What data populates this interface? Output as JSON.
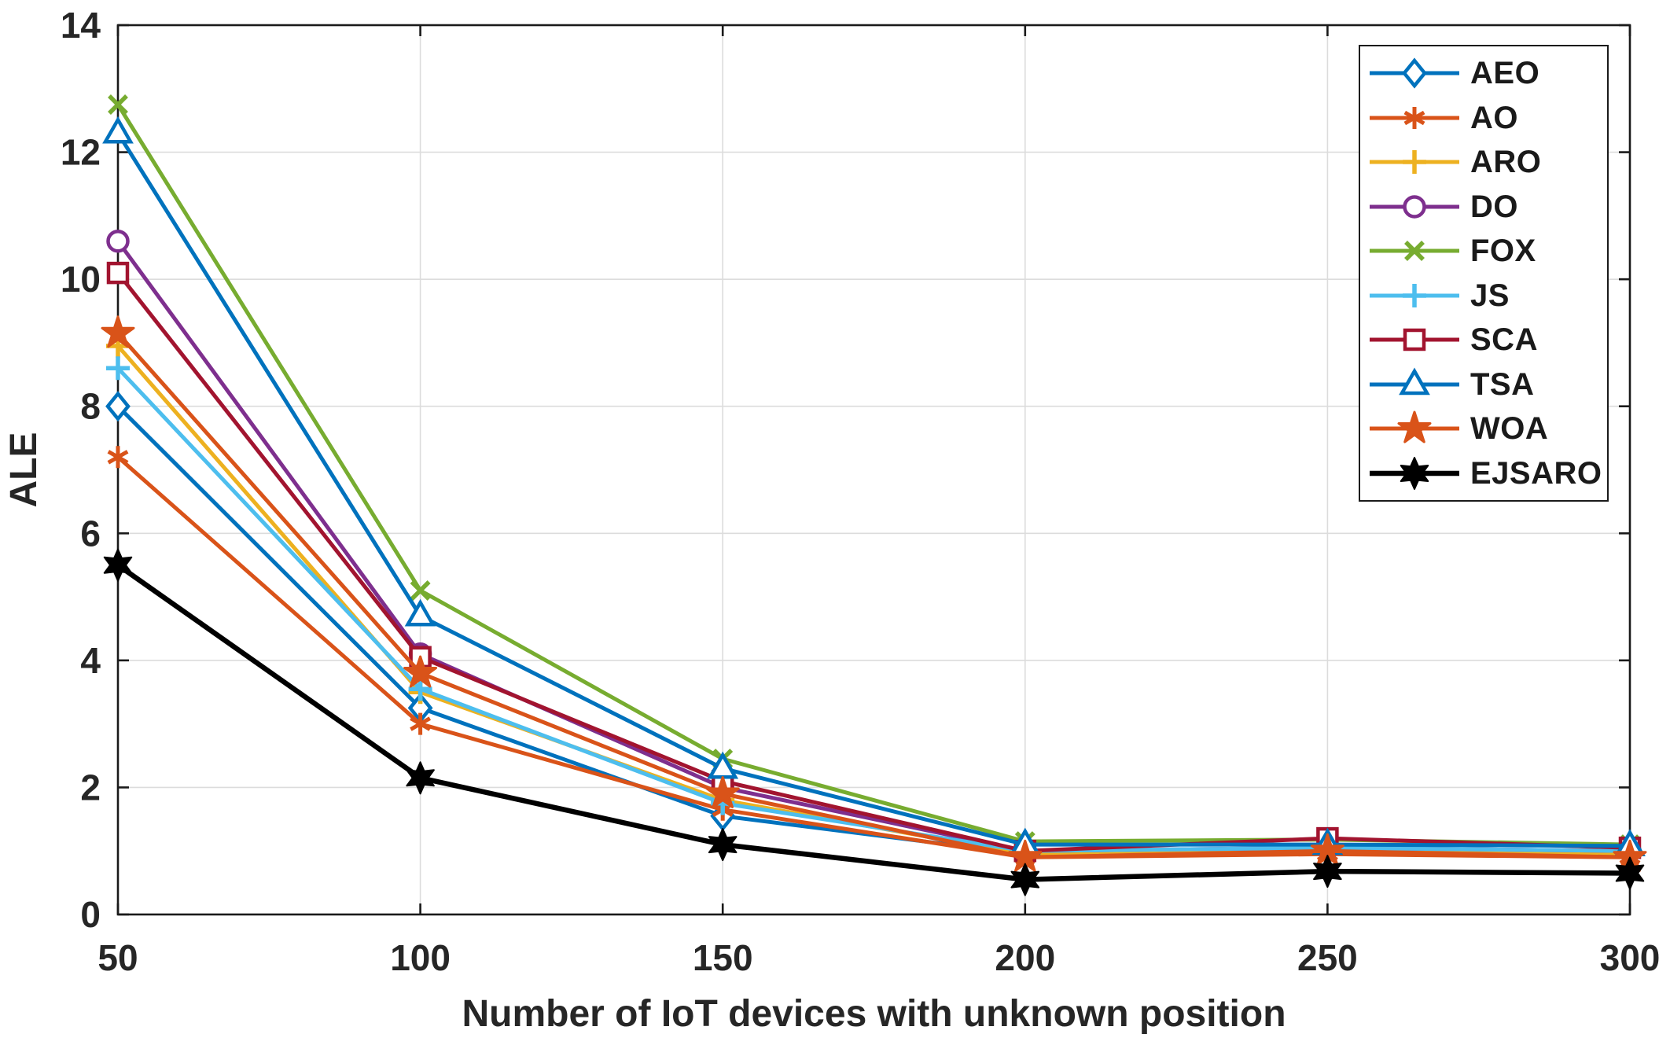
{
  "chart_data": {
    "type": "line",
    "title": "",
    "xlabel": "Number of IoT devices with unknown position",
    "ylabel": "ALE",
    "x": [
      50,
      100,
      150,
      200,
      250,
      300
    ],
    "xlim": [
      50,
      300
    ],
    "ylim": [
      0,
      14
    ],
    "xticks": [
      50,
      100,
      150,
      200,
      250,
      300
    ],
    "yticks": [
      0,
      2,
      4,
      6,
      8,
      10,
      12,
      14
    ],
    "grid": true,
    "legend_position": "top-right",
    "series": [
      {
        "name": "AEO",
        "color": "#0072BD",
        "marker": "diamond",
        "values": [
          8.0,
          3.25,
          1.55,
          0.95,
          1.05,
          1.0
        ]
      },
      {
        "name": "AO",
        "color": "#D95319",
        "marker": "asterisk",
        "values": [
          7.2,
          3.0,
          1.65,
          0.9,
          0.95,
          0.9
        ]
      },
      {
        "name": "ARO",
        "color": "#EDB120",
        "marker": "plus",
        "values": [
          8.95,
          3.5,
          1.8,
          0.95,
          1.0,
          0.95
        ]
      },
      {
        "name": "DO",
        "color": "#7E2F8E",
        "marker": "circle",
        "values": [
          10.6,
          4.1,
          2.0,
          1.0,
          1.05,
          1.0
        ]
      },
      {
        "name": "FOX",
        "color": "#77AC30",
        "marker": "x",
        "values": [
          12.75,
          5.1,
          2.45,
          1.15,
          1.18,
          1.1
        ]
      },
      {
        "name": "JS",
        "color": "#4DBEEE",
        "marker": "plus",
        "values": [
          8.6,
          3.55,
          1.75,
          1.0,
          1.05,
          1.0
        ]
      },
      {
        "name": "SCA",
        "color": "#A2142F",
        "marker": "square",
        "values": [
          10.1,
          4.05,
          2.1,
          1.0,
          1.2,
          1.05
        ]
      },
      {
        "name": "TSA",
        "color": "#0072BD",
        "marker": "triangle",
        "values": [
          12.3,
          4.7,
          2.3,
          1.1,
          1.1,
          1.08
        ]
      },
      {
        "name": "WOA",
        "color": "#D95319",
        "marker": "pentagram",
        "values": [
          9.15,
          3.8,
          1.9,
          0.9,
          1.0,
          0.9
        ]
      },
      {
        "name": "EJSARO",
        "color": "#000000",
        "marker": "hexagram",
        "values": [
          5.5,
          2.15,
          1.1,
          0.55,
          0.68,
          0.65
        ]
      }
    ]
  },
  "style": {
    "grid_color": "#dcdcdc",
    "axis_color": "#1a1a1a",
    "tick_label_color": "#262626",
    "background": "#ffffff"
  }
}
